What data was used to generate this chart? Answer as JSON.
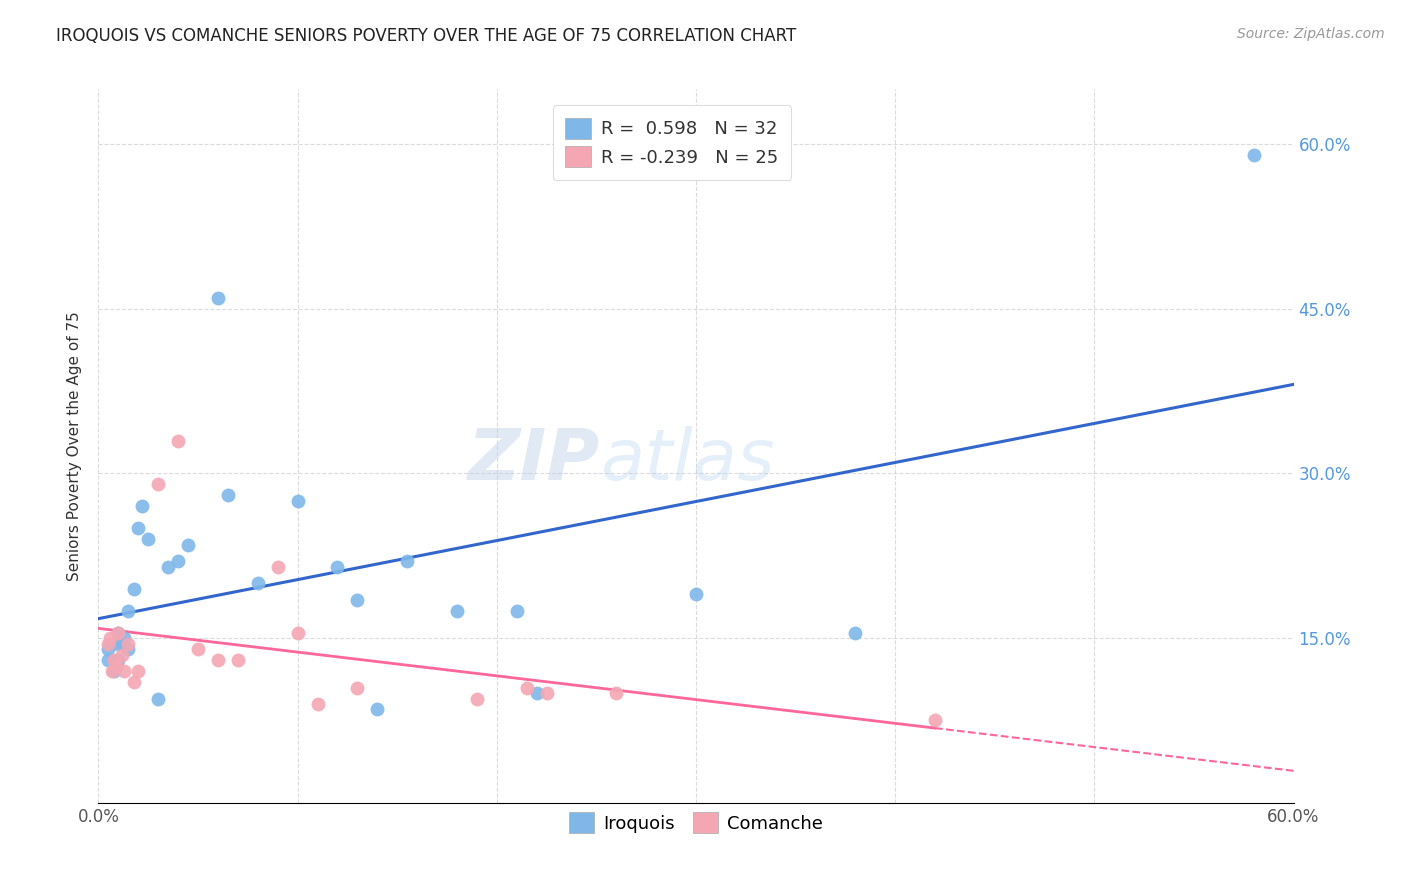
{
  "title": "IROQUOIS VS COMANCHE SENIORS POVERTY OVER THE AGE OF 75 CORRELATION CHART",
  "source": "Source: ZipAtlas.com",
  "ylabel": "Seniors Poverty Over the Age of 75",
  "xlabel_iroquois": "Iroquois",
  "xlabel_comanche": "Comanche",
  "legend_r_iroquois": "R =  0.598",
  "legend_n_iroquois": "N = 32",
  "legend_r_comanche": "R = -0.239",
  "legend_n_comanche": "N = 25",
  "xlim": [
    0.0,
    0.6
  ],
  "ylim": [
    0.0,
    0.65
  ],
  "xtick_positions": [
    0.0,
    0.1,
    0.2,
    0.3,
    0.4,
    0.5,
    0.6
  ],
  "xticklabels": [
    "0.0%",
    "",
    "",
    "",
    "",
    "",
    "60.0%"
  ],
  "ytick_positions": [
    0.0,
    0.15,
    0.3,
    0.45,
    0.6
  ],
  "right_yticklabels": [
    "15.0%",
    "30.0%",
    "45.0%",
    "60.0%"
  ],
  "color_iroquois": "#7EB7E8",
  "color_comanche": "#F4A7B3",
  "line_color_iroquois": "#3366CC",
  "line_color_comanche": "#FF6699",
  "watermark_zip": "ZIP",
  "watermark_atlas": "atlas",
  "iroquois_x": [
    0.005,
    0.005,
    0.008,
    0.01,
    0.01,
    0.01,
    0.012,
    0.013,
    0.015,
    0.015,
    0.018,
    0.02,
    0.022,
    0.025,
    0.03,
    0.035,
    0.04,
    0.045,
    0.06,
    0.065,
    0.08,
    0.1,
    0.12,
    0.13,
    0.14,
    0.155,
    0.18,
    0.21,
    0.22,
    0.3,
    0.38,
    0.58
  ],
  "iroquois_y": [
    0.13,
    0.14,
    0.12,
    0.145,
    0.155,
    0.13,
    0.145,
    0.15,
    0.175,
    0.14,
    0.195,
    0.25,
    0.27,
    0.24,
    0.095,
    0.215,
    0.22,
    0.235,
    0.46,
    0.28,
    0.2,
    0.275,
    0.215,
    0.185,
    0.085,
    0.22,
    0.175,
    0.175,
    0.1,
    0.19,
    0.155,
    0.59
  ],
  "comanche_x": [
    0.005,
    0.006,
    0.007,
    0.008,
    0.009,
    0.01,
    0.012,
    0.013,
    0.015,
    0.018,
    0.02,
    0.03,
    0.04,
    0.05,
    0.06,
    0.07,
    0.09,
    0.1,
    0.11,
    0.13,
    0.19,
    0.215,
    0.225,
    0.26,
    0.42
  ],
  "comanche_y": [
    0.145,
    0.15,
    0.12,
    0.13,
    0.125,
    0.155,
    0.135,
    0.12,
    0.145,
    0.11,
    0.12,
    0.29,
    0.33,
    0.14,
    0.13,
    0.13,
    0.215,
    0.155,
    0.09,
    0.105,
    0.095,
    0.105,
    0.1,
    0.1,
    0.075
  ],
  "background_color": "#FFFFFF",
  "grid_color": "#CCCCCC",
  "figsize": [
    14.06,
    8.92
  ],
  "dpi": 100
}
